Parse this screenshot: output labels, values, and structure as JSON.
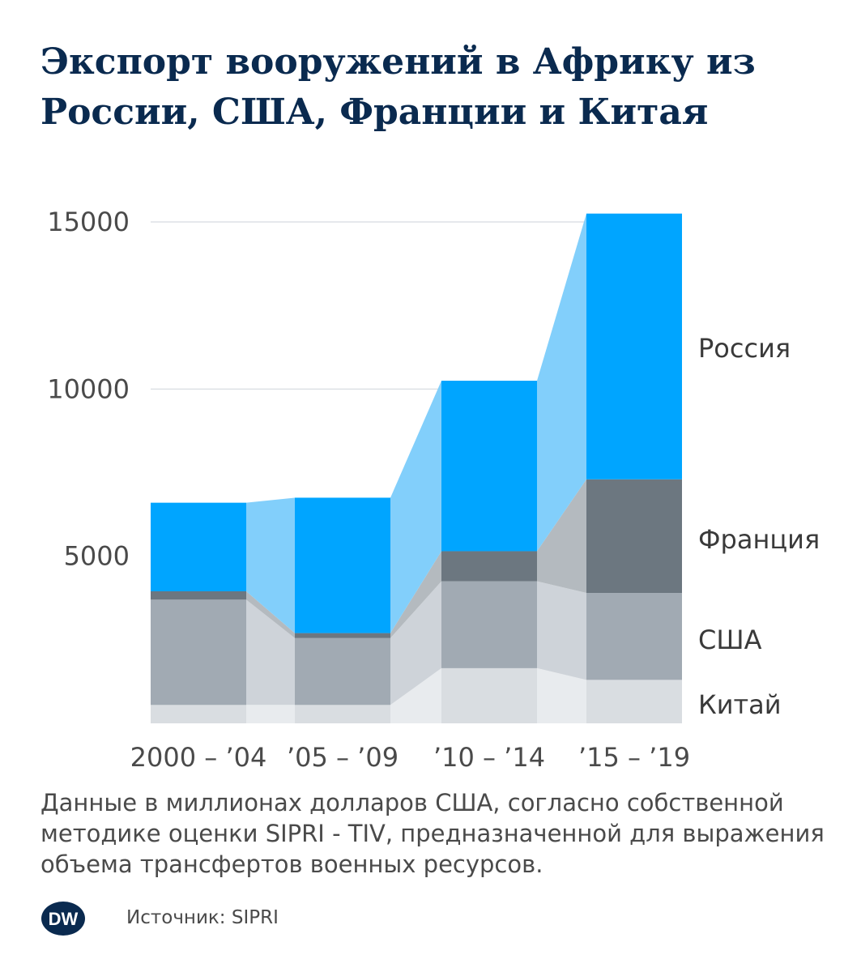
{
  "title": "Экспорт вооружений в Африку из России, США, Франции и Китая",
  "note": "Данные в миллионах долларов США, согласно собственной методике оценки SIPRI - TIV, предназначенной для выражения объема трансфертов военных ресурсов.",
  "footer": {
    "logo_text": "DW",
    "source_label": "Источник:",
    "source_value": "SIPRI"
  },
  "colors": {
    "Китай": "#d9dde1",
    "США": "#a1aab3",
    "Франция": "#6c7780",
    "Россия": "#00a5ff"
  },
  "link_colors": {
    "Китай": "#e8ebee",
    "США": "#ced3d9",
    "Франция": "#b4babf",
    "Россия": "#82cffb"
  },
  "chart_data": {
    "type": "bar",
    "stacked": true,
    "title": "Экспорт вооружений в Африку из России, США, Франции и Китая",
    "xlabel": "",
    "ylabel": "",
    "categories": [
      "2000 – ’04",
      "’05 – ’09",
      "’10 – ’14",
      "’15 – ’19"
    ],
    "series": [
      {
        "name": "Китай",
        "values": [
          550,
          550,
          1650,
          1300
        ]
      },
      {
        "name": "США",
        "values": [
          3150,
          2000,
          2600,
          2600
        ]
      },
      {
        "name": "Франция",
        "values": [
          250,
          150,
          900,
          3400
        ]
      },
      {
        "name": "Россия",
        "values": [
          2650,
          4050,
          5100,
          7950
        ]
      }
    ],
    "yticks": [
      5000,
      10000,
      15000
    ],
    "ylim": [
      0,
      15000
    ],
    "grid": true,
    "legend": "right, inline labels"
  }
}
